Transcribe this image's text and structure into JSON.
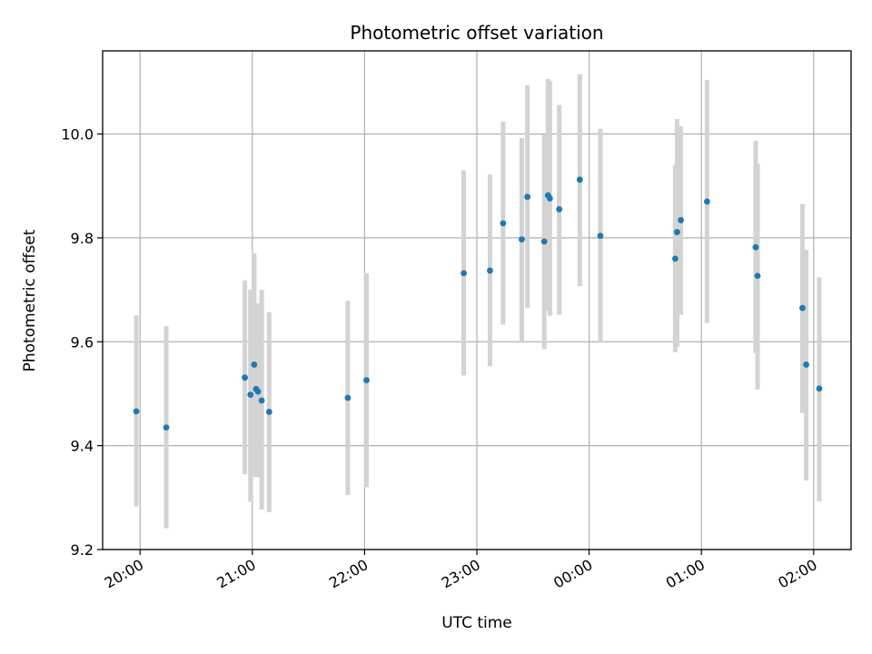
{
  "chart_data": {
    "type": "scatter",
    "title": "Photometric offset variation",
    "xlabel": "UTC time",
    "ylabel": "Photometric offset",
    "xlim": [
      "19:40",
      "02:20"
    ],
    "ylim": [
      9.2,
      10.16
    ],
    "x_ticks": [
      "20:00",
      "21:00",
      "22:00",
      "23:00",
      "00:00",
      "01:00",
      "02:00"
    ],
    "y_ticks": [
      "9.2",
      "9.4",
      "9.6",
      "9.8",
      "10.0"
    ],
    "grid": true,
    "colors": {
      "point": "#1f77b4",
      "errorbar": "#d3d3d3",
      "grid": "#b0b0b0"
    },
    "points": [
      {
        "x": "19:58",
        "y": 9.466,
        "ylo": 9.283,
        "yhi": 9.651
      },
      {
        "x": "20:14",
        "y": 9.435,
        "ylo": 9.241,
        "yhi": 9.63
      },
      {
        "x": "20:56",
        "y": 9.531,
        "ylo": 9.345,
        "yhi": 9.718
      },
      {
        "x": "20:59",
        "y": 9.498,
        "ylo": 9.292,
        "yhi": 9.701
      },
      {
        "x": "21:01",
        "y": 9.556,
        "ylo": 9.34,
        "yhi": 9.77
      },
      {
        "x": "21:02",
        "y": 9.509,
        "ylo": 9.34,
        "yhi": 9.67
      },
      {
        "x": "21:03",
        "y": 9.504,
        "ylo": 9.339,
        "yhi": 9.674
      },
      {
        "x": "21:05",
        "y": 9.487,
        "ylo": 9.277,
        "yhi": 9.7
      },
      {
        "x": "21:09",
        "y": 9.465,
        "ylo": 9.272,
        "yhi": 9.657
      },
      {
        "x": "21:51",
        "y": 9.492,
        "ylo": 9.305,
        "yhi": 9.679
      },
      {
        "x": "22:01",
        "y": 9.526,
        "ylo": 9.32,
        "yhi": 9.732
      },
      {
        "x": "22:53",
        "y": 9.732,
        "ylo": 9.535,
        "yhi": 9.93
      },
      {
        "x": "23:07",
        "y": 9.737,
        "ylo": 9.553,
        "yhi": 9.922
      },
      {
        "x": "23:14",
        "y": 9.828,
        "ylo": 9.633,
        "yhi": 10.024
      },
      {
        "x": "23:24",
        "y": 9.797,
        "ylo": 9.602,
        "yhi": 9.992
      },
      {
        "x": "23:27",
        "y": 9.879,
        "ylo": 9.665,
        "yhi": 10.094
      },
      {
        "x": "23:36",
        "y": 9.793,
        "ylo": 9.586,
        "yhi": 9.999
      },
      {
        "x": "23:38",
        "y": 9.882,
        "ylo": 9.66,
        "yhi": 10.106
      },
      {
        "x": "23:39",
        "y": 9.876,
        "ylo": 9.65,
        "yhi": 10.102
      },
      {
        "x": "23:44",
        "y": 9.855,
        "ylo": 9.652,
        "yhi": 10.056
      },
      {
        "x": "23:55",
        "y": 9.912,
        "ylo": 9.707,
        "yhi": 10.115
      },
      {
        "x": "00:06",
        "y": 9.804,
        "ylo": 9.599,
        "yhi": 10.01
      },
      {
        "x": "00:46",
        "y": 9.76,
        "ylo": 9.58,
        "yhi": 9.94
      },
      {
        "x": "00:47",
        "y": 9.811,
        "ylo": 9.59,
        "yhi": 10.029
      },
      {
        "x": "00:49",
        "y": 9.834,
        "ylo": 9.652,
        "yhi": 10.015
      },
      {
        "x": "01:03",
        "y": 9.87,
        "ylo": 9.636,
        "yhi": 10.104
      },
      {
        "x": "01:29",
        "y": 9.782,
        "ylo": 9.578,
        "yhi": 9.987
      },
      {
        "x": "01:30",
        "y": 9.727,
        "ylo": 9.508,
        "yhi": 9.943
      },
      {
        "x": "01:54",
        "y": 9.665,
        "ylo": 9.463,
        "yhi": 9.865
      },
      {
        "x": "01:56",
        "y": 9.556,
        "ylo": 9.333,
        "yhi": 9.777
      },
      {
        "x": "02:03",
        "y": 9.51,
        "ylo": 9.293,
        "yhi": 9.724
      }
    ]
  }
}
